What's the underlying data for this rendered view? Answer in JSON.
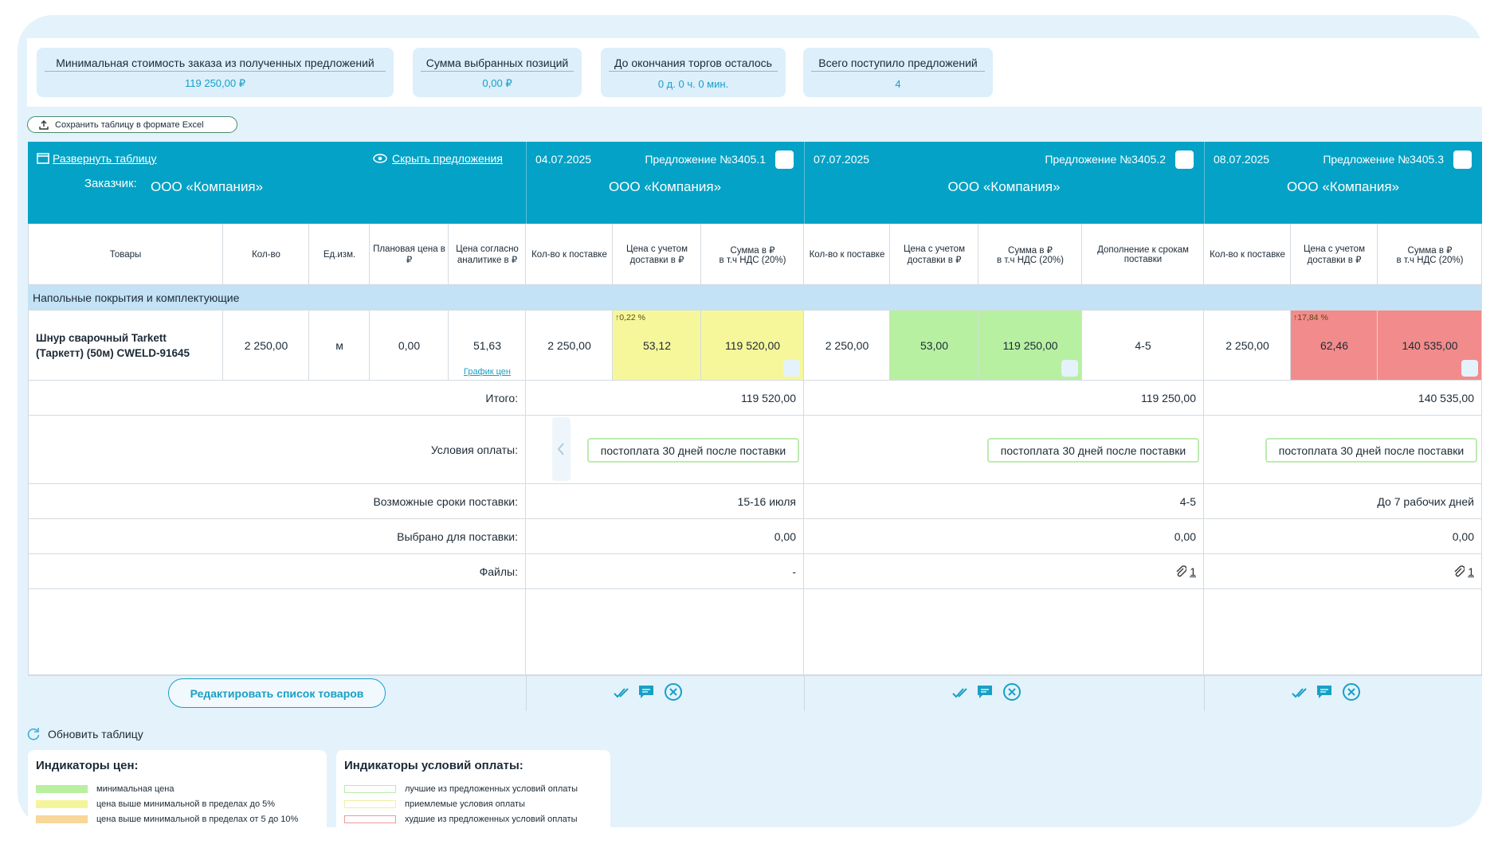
{
  "summary": [
    {
      "label": "Минимальная стоимость заказа из полученных предложений",
      "value": "119 250,00 ₽"
    },
    {
      "label": "Сумма выбранных позиций",
      "value": "0,00 ₽"
    },
    {
      "label": "До окончания торгов осталось",
      "value": "0 д. 0 ч. 0 мин."
    },
    {
      "label": "Всего поступило предложений",
      "value": "4"
    }
  ],
  "export_button": "Сохранить таблицу в формате Excel",
  "table": {
    "expand_link": "Развернуть таблицу",
    "hide_link": "Скрыть предложения",
    "customer_label": "Заказчик:",
    "customer": "ООО «Компания»",
    "columns": [
      "Товары",
      "Кол-во",
      "Ед.изм.",
      "Плановая цена в ₽",
      "Цена согласно аналитике в ₽"
    ],
    "group": "Напольные покрытия и комплектующие",
    "item": {
      "name": "Шнур сварочный Tarkett (Таркетт) (50м) CWELD-91645",
      "qty": "2 250,00",
      "unit": "м",
      "plan_price": "0,00",
      "analytics_price": "51,63",
      "chart_link": "График цен"
    },
    "row_labels": {
      "total": "Итого:",
      "payment": "Условия оплаты:",
      "delivery": "Возможные сроки поставки:",
      "selected": "Выбрано для поставки:",
      "files": "Файлы:"
    },
    "offers": [
      {
        "date": "04.07.2025",
        "title": "Предложение №3405.1",
        "company": "ООО «Компания»",
        "columns": [
          "Кол-во к поставке",
          "Цена с учетом доставки в ₽",
          "Сумма в ₽\nв т.ч НДС (20%)"
        ],
        "item": {
          "qty": "2 250,00",
          "price": "53,12",
          "price_delta": "↑0,22 %",
          "sum": "119 520,00"
        },
        "total": "119 520,00",
        "payment": "постоплата 30 дней после поставки",
        "delivery": "15-16 июля",
        "selected": "0,00",
        "files": "-"
      },
      {
        "date": "07.07.2025",
        "title": "Предложение №3405.2",
        "company": "ООО «Компания»",
        "columns": [
          "Кол-во к поставке",
          "Цена с учетом доставки в ₽",
          "Сумма в ₽\nв т.ч НДС (20%)",
          "Дополнение к срокам поставки"
        ],
        "item": {
          "qty": "2 250,00",
          "price": "53,00",
          "sum": "119 250,00",
          "extra": "4-5"
        },
        "total": "119 250,00",
        "payment": "постоплата 30 дней после поставки",
        "delivery": "4-5",
        "selected": "0,00",
        "files": "1"
      },
      {
        "date": "08.07.2025",
        "title": "Предложение №3405.3",
        "company": "ООО «Компания»",
        "columns": [
          "Кол-во к поставке",
          "Цена с учетом доставки в ₽",
          "Сумма в ₽\nв т.ч НДС (20%)"
        ],
        "item": {
          "qty": "2 250,00",
          "price": "62,46",
          "price_delta": "↑17,84 %",
          "sum": "140 535,00"
        },
        "total": "140 535,00",
        "payment": "постоплата 30 дней после поставки",
        "delivery": "До 7 рабочих дней",
        "selected": "0,00",
        "files": "1"
      }
    ],
    "edit_button": "Редактировать список товаров"
  },
  "refresh": "Обновить таблицу",
  "legends": [
    {
      "title": "Индикаторы цен:",
      "items": [
        "минимальная цена",
        "цена выше минимальной в пределах до 5%",
        "цена выше минимальной в пределах от 5 до 10%"
      ]
    },
    {
      "title": "Индикаторы условий оплаты:",
      "items": [
        "лучшие из предложенных условий оплаты",
        "приемлемые условия оплаты",
        "худшие из предложенных условий оплаты"
      ]
    }
  ]
}
